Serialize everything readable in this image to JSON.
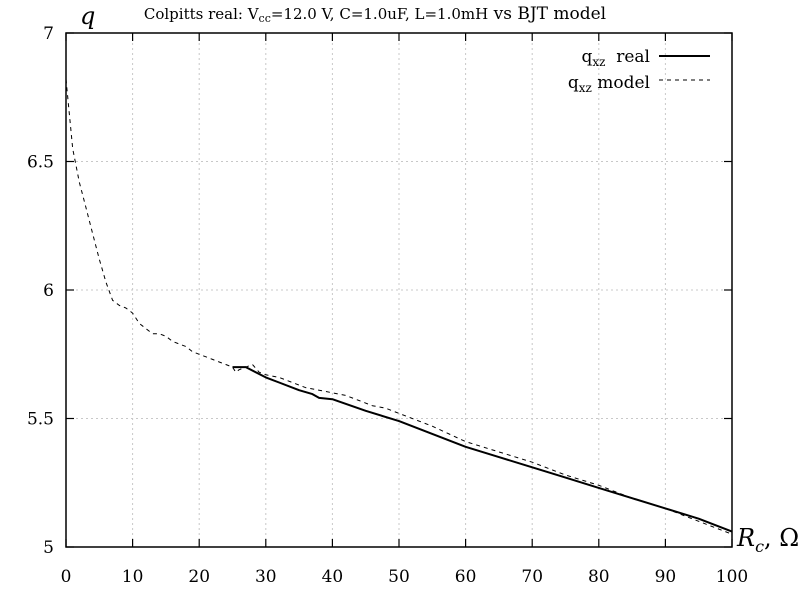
{
  "chart_data": {
    "type": "line",
    "title": {
      "prefix": "Colpitts real: V",
      "sub": "cc",
      "suffix": "=12.0 V, C=1.0uF, L=1.0mH",
      "tail": " vs BJT model"
    },
    "ylabel": "q",
    "xlabel": {
      "main": "R",
      "sub": "c",
      "unit": ", Ω"
    },
    "xlim": [
      0,
      100
    ],
    "ylim": [
      5,
      7
    ],
    "xticks": [
      0,
      10,
      20,
      30,
      40,
      50,
      60,
      70,
      80,
      90,
      100
    ],
    "yticks": [
      5,
      5.5,
      6,
      6.5,
      7
    ],
    "ytick_labels": [
      "5",
      "5.5",
      "6",
      "6.5",
      "7"
    ],
    "grid": true,
    "legend_position": "top-right",
    "series": [
      {
        "name": "q",
        "name_sub": "xz",
        "name_suffix": "  real",
        "style": "solid",
        "x": [
          25,
          27,
          30,
          32,
          35,
          37,
          38,
          40,
          45,
          50,
          55,
          60,
          65,
          70,
          75,
          80,
          85,
          90,
          95,
          100
        ],
        "y": [
          5.7,
          5.7,
          5.66,
          5.64,
          5.61,
          5.595,
          5.58,
          5.575,
          5.53,
          5.49,
          5.44,
          5.39,
          5.35,
          5.31,
          5.27,
          5.23,
          5.19,
          5.15,
          5.11,
          5.06
        ]
      },
      {
        "name": "q",
        "name_sub": "xz",
        "name_suffix": " model",
        "style": "dashed",
        "x": [
          0,
          1,
          2,
          3,
          4,
          5,
          6,
          7,
          8,
          9,
          10,
          11,
          12,
          13,
          14,
          15,
          16,
          17,
          18,
          19,
          20,
          21,
          22,
          23,
          24,
          25,
          25.5,
          26,
          27,
          28,
          29,
          30,
          32,
          34,
          36,
          38,
          40,
          42,
          44,
          46,
          48,
          50,
          55,
          60,
          65,
          70,
          75,
          80,
          85,
          90,
          95,
          100
        ],
        "y": [
          6.82,
          6.55,
          6.42,
          6.32,
          6.22,
          6.12,
          6.03,
          5.96,
          5.94,
          5.93,
          5.91,
          5.87,
          5.85,
          5.83,
          5.83,
          5.82,
          5.8,
          5.79,
          5.78,
          5.76,
          5.75,
          5.74,
          5.73,
          5.72,
          5.71,
          5.7,
          5.68,
          5.69,
          5.7,
          5.71,
          5.68,
          5.67,
          5.66,
          5.64,
          5.62,
          5.61,
          5.6,
          5.59,
          5.57,
          5.55,
          5.54,
          5.52,
          5.47,
          5.41,
          5.37,
          5.33,
          5.28,
          5.24,
          5.19,
          5.15,
          5.1,
          5.05
        ]
      }
    ]
  }
}
